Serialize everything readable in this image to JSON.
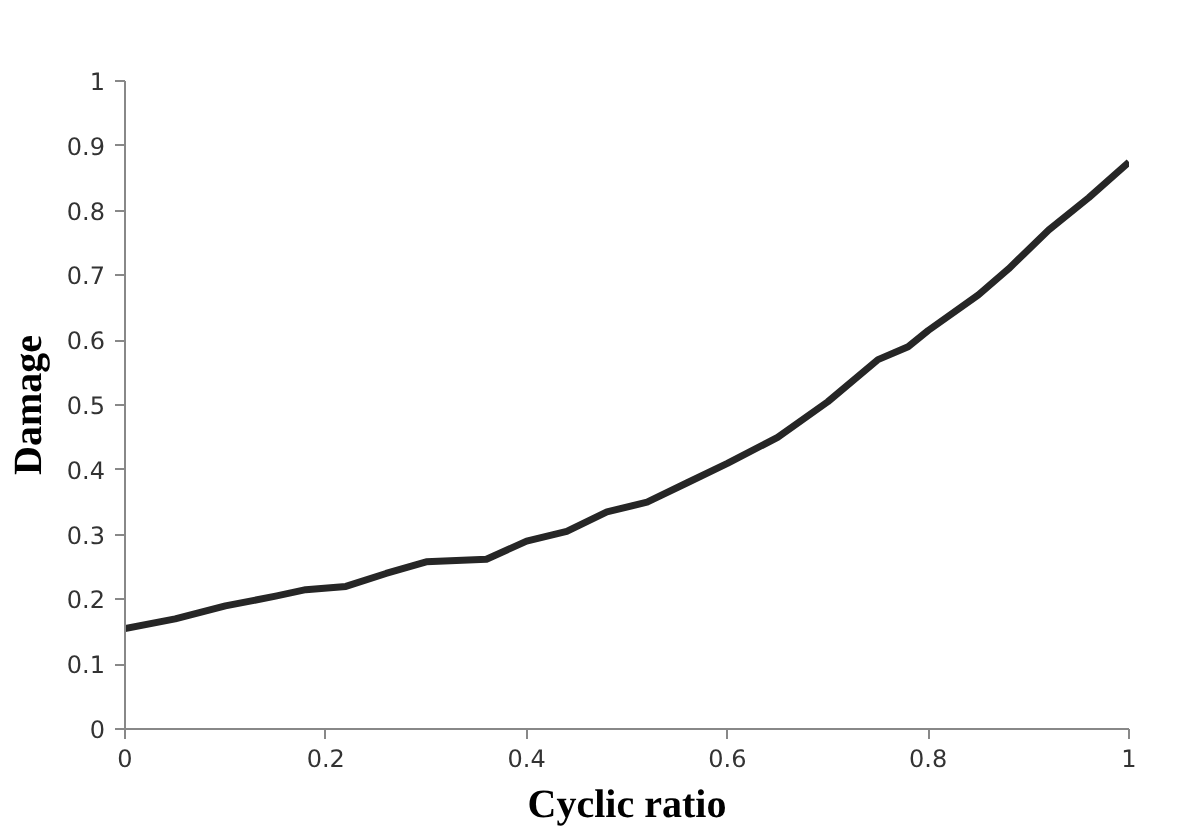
{
  "chart_data": {
    "type": "line",
    "xlabel": "Cyclic ratio",
    "ylabel": "Damage",
    "xlim": [
      0,
      1
    ],
    "xticks": [
      0,
      0.2,
      0.4,
      0.6,
      0.8,
      1
    ],
    "ylim": [
      0,
      1
    ],
    "yticks": [
      0,
      0.1,
      0.2,
      0.3,
      0.4,
      0.5,
      0.6,
      0.7,
      0.8,
      0.9,
      1
    ],
    "grid": false,
    "marker": "none",
    "line_style": "solid",
    "series": [
      {
        "color": "#262626",
        "x": [
          0,
          0.05,
          0.1,
          0.15,
          0.18,
          0.22,
          0.26,
          0.3,
          0.33,
          0.36,
          0.4,
          0.44,
          0.48,
          0.52,
          0.56,
          0.6,
          0.65,
          0.7,
          0.75,
          0.78,
          0.8,
          0.85,
          0.88,
          0.92,
          0.96,
          1.0
        ],
        "values": [
          0.155,
          0.17,
          0.19,
          0.205,
          0.215,
          0.22,
          0.24,
          0.258,
          0.26,
          0.262,
          0.29,
          0.305,
          0.335,
          0.35,
          0.38,
          0.41,
          0.45,
          0.505,
          0.57,
          0.59,
          0.615,
          0.67,
          0.71,
          0.77,
          0.82,
          0.875
        ]
      }
    ]
  }
}
